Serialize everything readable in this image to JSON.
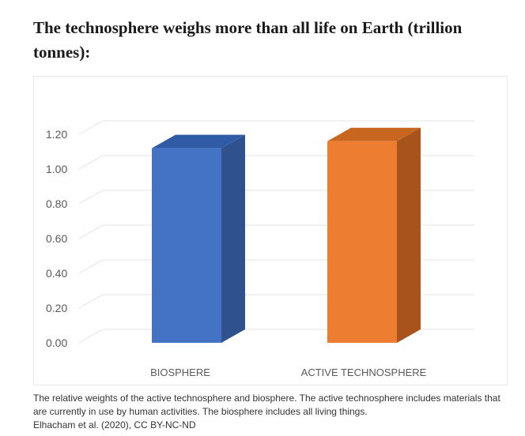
{
  "title": "The technosphere weighs more than all life on Earth (trillion tonnes):",
  "caption": "The relative weights of the active technosphere and biosphere. The active technosphere includes materials that are currently in use by human activities. The biosphere includes all living things.",
  "credit": "Elhacham et al. (2020), CC BY-NC-ND",
  "chart_data": {
    "type": "bar",
    "categories": [
      "BIOSPHERE",
      "ACTIVE TECHNOSPHERE"
    ],
    "values": [
      1.12,
      1.16
    ],
    "ylim": [
      0,
      1.2
    ],
    "yticks": [
      "0.00",
      "0.20",
      "0.40",
      "0.60",
      "0.80",
      "1.00",
      "1.20"
    ],
    "grid": true,
    "style": "3d-column",
    "colors": {
      "BIOSPHERE": {
        "front": "#4472c4",
        "side": "#2f528f",
        "top": "#305ba6"
      },
      "ACTIVE TECHNOSPHERE": {
        "front": "#ed7d31",
        "side": "#a9531c",
        "top": "#c8651f"
      }
    }
  }
}
